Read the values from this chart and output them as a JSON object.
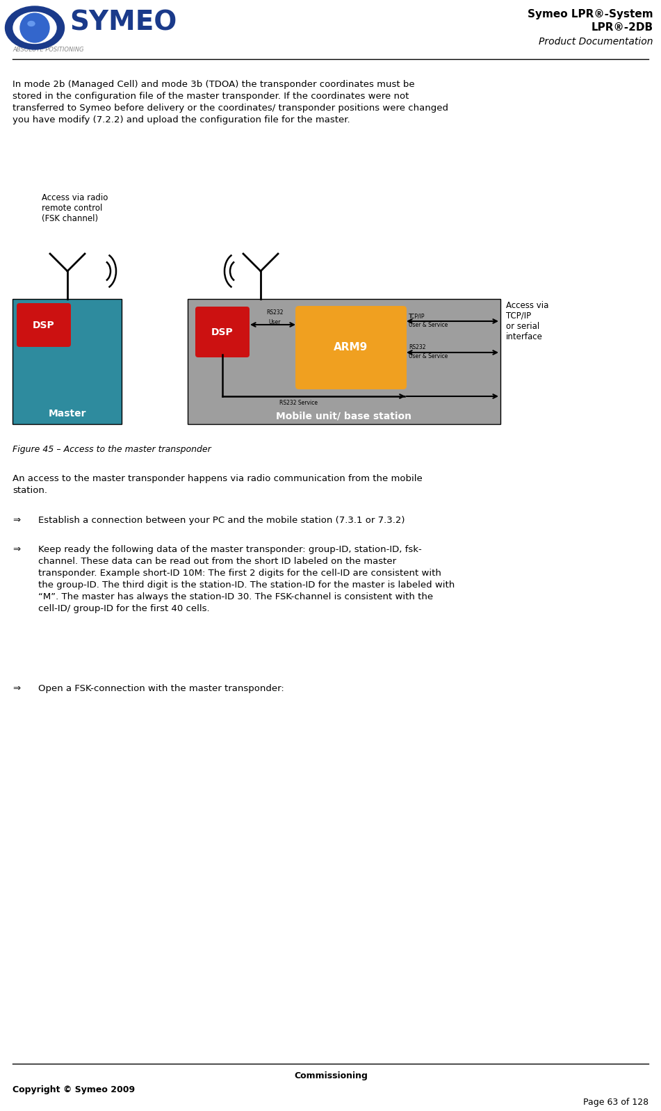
{
  "page_width": 9.51,
  "page_height": 15.98,
  "bg_color": "#ffffff",
  "header_right_line1": "Symeo LPR®-System",
  "header_right_line2": "LPR®-2DB",
  "header_right_line3": "Product Documentation",
  "footer_center": "Commissioning",
  "footer_left": "Copyright © Symeo 2009",
  "footer_right": "Page 63 of 128",
  "body_para1": "In mode 2b (Managed Cell) and mode 3b (TDOA) the transponder coordinates must be\nstored in the configuration file of the master transponder. If the coordinates were not\ntransferred to Symeo before delivery or the coordinates/ transponder positions were changed\nyou have modify (7.2.2) and upload the configuration file for the master.",
  "fig_caption": "Figure 45 – Access to the master transponder",
  "body_para2": "An access to the master transponder happens via radio communication from the mobile\nstation.",
  "bullet1_arrow": "⇒",
  "bullet1_text": "Establish a connection between your PC and the mobile station (7.3.1 or 7.3.2)",
  "bullet2_arrow": "⇒",
  "bullet2_text": "Keep ready the following data of the master transponder: group-ID, station-ID, fsk-\nchannel. These data can be read out from the short ID labeled on the master\ntransponder. Example short-ID 10M: The first 2 digits for the cell-ID are consistent with\nthe group-ID. The third digit is the station-ID. The station-ID for the master is labeled with\n“M”. The master has always the station-ID 30. The FSK-channel is consistent with the\ncell-ID/ group-ID for the first 40 cells.",
  "bullet3_arrow": "⇒",
  "bullet3_text": "Open a FSK-connection with the master transponder:",
  "teal_color": "#2e8b9e",
  "gray_color": "#9e9e9e",
  "red_color": "#cc1111",
  "orange_color": "#f0a020",
  "dsp_text": "DSP",
  "arm9_text": "ARM9",
  "master_text": "Master",
  "mobile_text": "Mobile unit/ base station",
  "access_radio_text": "Access via radio\nremote control\n(FSK channel)",
  "access_tcp_text": "Access via\nTCP/IP\nor serial\ninterface"
}
